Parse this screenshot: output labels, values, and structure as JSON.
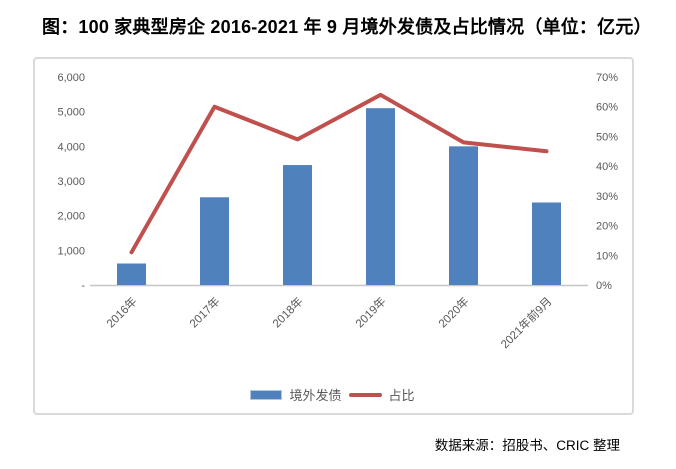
{
  "title": "图：100 家典型房企 2016-2021 年 9 月境外发债及占比情况（单位：亿元）",
  "source": "数据来源：招股书、CRIC 整理",
  "colors": {
    "bar": "#4F81BD",
    "line": "#C0504D",
    "axis_line": "#C6C6C6",
    "tick_text": "#595959",
    "frame_border": "#D9D9D9"
  },
  "chart_data": {
    "type": "bar+line combo",
    "title": "图：100 家典型房企 2016-2021 年 9 月境外发债及占比情况（单位：亿元）",
    "categories": [
      "2016年",
      "2017年",
      "2018年",
      "2019年",
      "2020年",
      "2021年前9月"
    ],
    "series": [
      {
        "name": "境外发债",
        "type": "bar",
        "axis": "left",
        "unit": "亿元",
        "color": "#4F81BD",
        "values": [
          620,
          2530,
          3460,
          5100,
          4000,
          2380
        ]
      },
      {
        "name": "占比",
        "type": "line",
        "axis": "right",
        "unit": "%",
        "color": "#C0504D",
        "values": [
          11,
          60,
          49,
          64,
          48,
          45
        ]
      }
    ],
    "left_axis": {
      "min": 0,
      "max": 6000,
      "tick_step": 1000,
      "tick_labels": [
        "6,000",
        "5,000",
        "4,000",
        "3,000",
        "2,000",
        "1,000",
        "-"
      ]
    },
    "right_axis": {
      "min": 0,
      "max": 70,
      "tick_step": 10,
      "tick_labels": [
        "70%",
        "60%",
        "50%",
        "40%",
        "30%",
        "20%",
        "10%",
        "0%"
      ]
    },
    "legend": {
      "position": "bottom",
      "items": [
        "境外发债",
        "占比"
      ]
    },
    "grid": false
  }
}
